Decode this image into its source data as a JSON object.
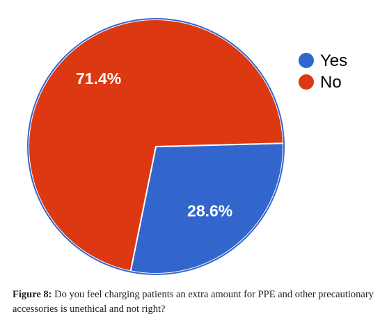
{
  "chart_data": {
    "type": "pie",
    "title": "",
    "slices": [
      {
        "label": "Yes",
        "value": 28.6,
        "display": "28.6%",
        "color": "#3366cc"
      },
      {
        "label": "No",
        "value": 71.4,
        "display": "71.4%",
        "color": "#dc3912"
      }
    ],
    "legend_position": "right",
    "separator_color": "#ffffff",
    "border_color": "#3366cc"
  },
  "caption": {
    "lead": "Figure 8:",
    "text": " Do you feel charging patients an extra amount for PPE and other precautionary accessories is unethical and not right?"
  }
}
